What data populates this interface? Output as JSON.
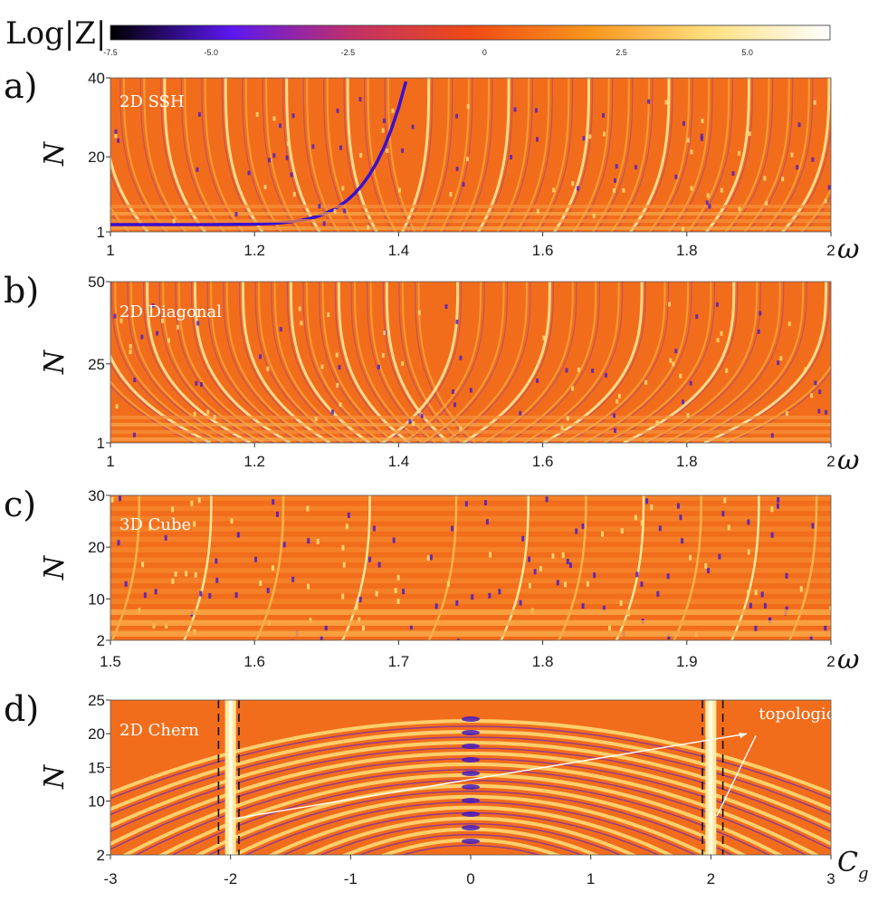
{
  "colorbar": {
    "label": "Log|Z|",
    "ticks": [
      "-7.5",
      "-5.0",
      "-2.5",
      "0",
      "2.5",
      "5.0"
    ],
    "range": [
      -7.5,
      7.5
    ],
    "colors": [
      "#000000",
      "#5a18f0",
      "#c0306a",
      "#f04a14",
      "#f8961e",
      "#ffe080",
      "#ffffff"
    ]
  },
  "chart_data": [
    {
      "type": "heatmap",
      "panel_label": "a)",
      "title": "2D SSH",
      "xlabel": "ω",
      "ylabel": "N",
      "xlim": [
        1,
        2
      ],
      "ylim": [
        1,
        40
      ],
      "xticks": [
        "1",
        "1.2",
        "1.4",
        "1.6",
        "1.8",
        "2"
      ],
      "yticks": [
        "1",
        "20",
        "40"
      ],
      "dark_curve_center": 1.414
    },
    {
      "type": "heatmap",
      "panel_label": "b)",
      "title": "2D Diagonal",
      "xlabel": "ω",
      "ylabel": "N",
      "xlim": [
        1,
        2
      ],
      "ylim": [
        1,
        50
      ],
      "xticks": [
        "1",
        "1.2",
        "1.4",
        "1.6",
        "1.8",
        "2"
      ],
      "yticks": [
        "1",
        "25",
        "50"
      ]
    },
    {
      "type": "heatmap",
      "panel_label": "c)",
      "title": "3D Cube",
      "xlabel": "ω",
      "ylabel": "N",
      "xlim": [
        1.5,
        2
      ],
      "ylim": [
        2,
        30
      ],
      "xticks": [
        "1.5",
        "1.6",
        "1.7",
        "1.8",
        "1.9",
        "2"
      ],
      "yticks": [
        "2",
        "10",
        "20",
        "30"
      ]
    },
    {
      "type": "heatmap",
      "panel_label": "d)",
      "title": "2D Chern",
      "xlabel": "C_g",
      "ylabel": "N",
      "xlim": [
        -3,
        3
      ],
      "ylim": [
        2,
        25
      ],
      "xticks": [
        "-3",
        "-2",
        "-1",
        "0",
        "1",
        "2",
        "3"
      ],
      "yticks": [
        "2",
        "10",
        "15",
        "20",
        "25"
      ],
      "dashed_lines": [
        -2.1,
        -1.93,
        1.93,
        2.1
      ],
      "bright_bands": [
        -2,
        2
      ],
      "annotation": "topological"
    }
  ]
}
